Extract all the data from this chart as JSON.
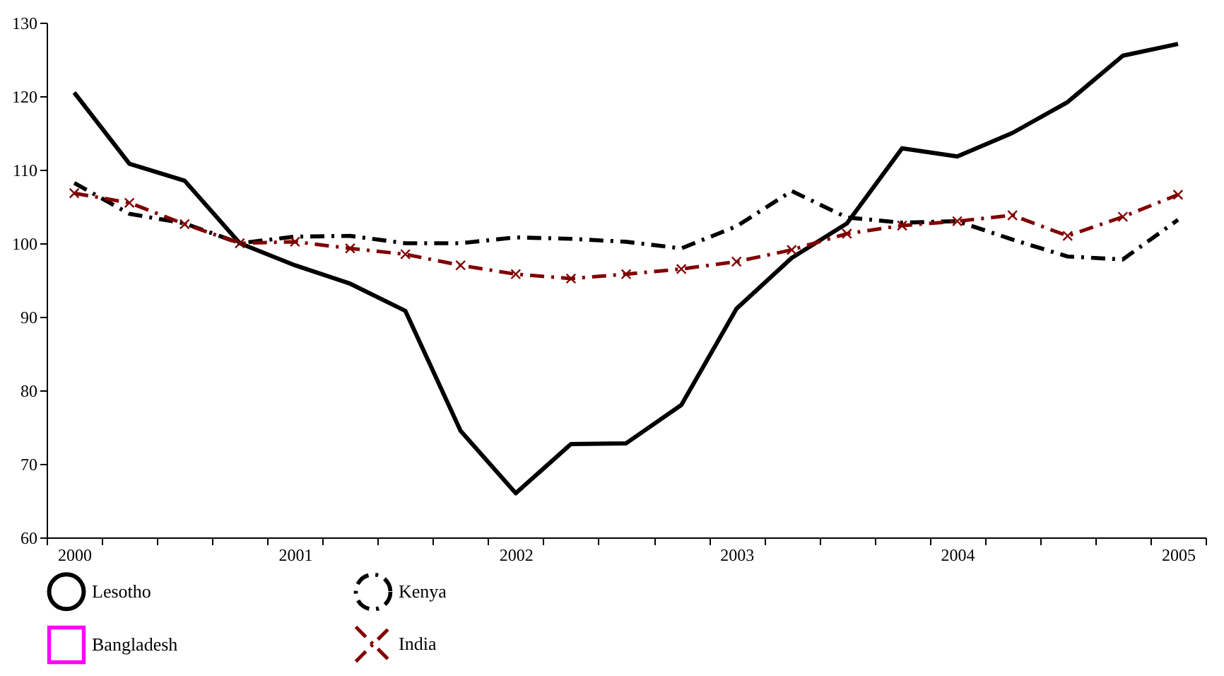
{
  "chart_data": {
    "type": "line",
    "categories": [
      "2000",
      null,
      null,
      null,
      "2001",
      null,
      null,
      null,
      "2002",
      null,
      null,
      null,
      "2003",
      null,
      null,
      null,
      "2004",
      null,
      null,
      null,
      "2005"
    ],
    "series": [
      {
        "name": "Lesotho",
        "color": "#000000",
        "line_style": "solid",
        "marker": "none",
        "values": [
          120.5,
          110.8,
          108.5,
          100,
          97,
          94.5,
          90.8,
          74.5,
          66,
          72.7,
          72.8,
          78,
          91.1,
          98,
          102.7,
          112.9,
          111.8,
          115,
          119.2,
          125.5,
          127.1
        ]
      },
      {
        "name": "Kenya",
        "color": "#000000",
        "line_style": "dashed",
        "marker": "none",
        "values": [
          108.2,
          104,
          102.7,
          100,
          100.9,
          101,
          100,
          100,
          100.8,
          100.6,
          100.2,
          99.3,
          102.3,
          107.1,
          103.5,
          102.8,
          103,
          100.5,
          98.2,
          97.8,
          103.2
        ]
      },
      {
        "name": "Bangladesh",
        "color": "#ff00ff",
        "line_style": "solid",
        "marker": "square",
        "values": [
          null,
          null,
          null,
          null,
          null,
          null,
          null,
          null,
          null,
          null,
          null,
          null,
          null,
          null,
          null,
          null,
          null,
          null,
          null,
          null,
          null
        ]
      },
      {
        "name": "India",
        "color": "#800000",
        "line_style": "dashed",
        "marker": "cross",
        "values": [
          106.8,
          105.5,
          102.6,
          100,
          100.2,
          99.3,
          98.5,
          97,
          95.8,
          95.2,
          95.8,
          96.5,
          97.5,
          99.1,
          101.3,
          102.4,
          103,
          103.8,
          101,
          103.6,
          106.6
        ]
      }
    ],
    "ylim": [
      60,
      130
    ],
    "yticks": [
      60,
      70,
      80,
      90,
      100,
      110,
      120,
      130
    ],
    "grid": false,
    "legend": "bottom"
  }
}
